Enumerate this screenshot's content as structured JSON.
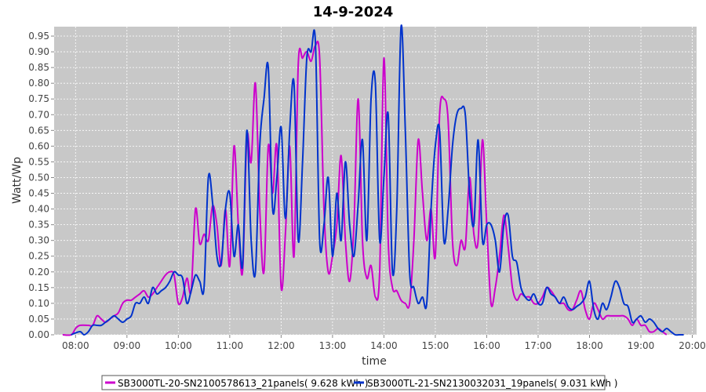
{
  "chart_data": {
    "type": "line",
    "title": "14-9-2024",
    "xlabel": "time",
    "ylabel": "Watt/Wp",
    "x_ticks": [
      "08:00",
      "09:00",
      "10:00",
      "11:00",
      "12:00",
      "13:00",
      "14:00",
      "15:00",
      "16:00",
      "17:00",
      "18:00",
      "19:00",
      "20:00"
    ],
    "x_range": [
      "07:35",
      "20:05"
    ],
    "ylim": [
      0,
      0.98
    ],
    "y_ticks": [
      "0.00",
      "0.05",
      "0.10",
      "0.15",
      "0.20",
      "0.25",
      "0.30",
      "0.35",
      "0.40",
      "0.45",
      "0.50",
      "0.55",
      "0.60",
      "0.65",
      "0.70",
      "0.75",
      "0.80",
      "0.85",
      "0.90",
      "0.95"
    ],
    "grid": true,
    "legend_position": "bottom",
    "series": [
      {
        "name": "SB3000TL-20-SN2100578613_21panels( 9.628 kWh )",
        "color": "#cc00cc",
        "points": [
          [
            "07:45",
            0.0
          ],
          [
            "07:55",
            0.0
          ],
          [
            "08:00",
            0.02
          ],
          [
            "08:05",
            0.03
          ],
          [
            "08:15",
            0.03
          ],
          [
            "08:20",
            0.03
          ],
          [
            "08:25",
            0.06
          ],
          [
            "08:30",
            0.05
          ],
          [
            "08:35",
            0.04
          ],
          [
            "08:40",
            0.05
          ],
          [
            "08:45",
            0.06
          ],
          [
            "08:50",
            0.07
          ],
          [
            "08:55",
            0.1
          ],
          [
            "09:00",
            0.11
          ],
          [
            "09:05",
            0.11
          ],
          [
            "09:10",
            0.12
          ],
          [
            "09:15",
            0.13
          ],
          [
            "09:20",
            0.14
          ],
          [
            "09:25",
            0.12
          ],
          [
            "09:30",
            0.13
          ],
          [
            "09:35",
            0.15
          ],
          [
            "09:40",
            0.17
          ],
          [
            "09:45",
            0.19
          ],
          [
            "09:50",
            0.2
          ],
          [
            "09:55",
            0.19
          ],
          [
            "10:00",
            0.1
          ],
          [
            "10:05",
            0.12
          ],
          [
            "10:10",
            0.18
          ],
          [
            "10:15",
            0.14
          ],
          [
            "10:20",
            0.4
          ],
          [
            "10:25",
            0.29
          ],
          [
            "10:30",
            0.32
          ],
          [
            "10:35",
            0.3
          ],
          [
            "10:40",
            0.41
          ],
          [
            "10:45",
            0.35
          ],
          [
            "10:50",
            0.22
          ],
          [
            "10:55",
            0.4
          ],
          [
            "11:00",
            0.22
          ],
          [
            "11:05",
            0.6
          ],
          [
            "11:10",
            0.35
          ],
          [
            "11:15",
            0.2
          ],
          [
            "11:20",
            0.63
          ],
          [
            "11:25",
            0.55
          ],
          [
            "11:30",
            0.8
          ],
          [
            "11:35",
            0.4
          ],
          [
            "11:40",
            0.2
          ],
          [
            "11:45",
            0.6
          ],
          [
            "11:50",
            0.45
          ],
          [
            "11:55",
            0.6
          ],
          [
            "12:00",
            0.15
          ],
          [
            "12:05",
            0.32
          ],
          [
            "12:10",
            0.6
          ],
          [
            "12:15",
            0.25
          ],
          [
            "12:20",
            0.86
          ],
          [
            "12:25",
            0.88
          ],
          [
            "12:30",
            0.9
          ],
          [
            "12:35",
            0.87
          ],
          [
            "12:40",
            0.92
          ],
          [
            "12:45",
            0.88
          ],
          [
            "12:50",
            0.4
          ],
          [
            "12:55",
            0.2
          ],
          [
            "13:00",
            0.25
          ],
          [
            "13:05",
            0.35
          ],
          [
            "13:10",
            0.57
          ],
          [
            "13:15",
            0.3
          ],
          [
            "13:20",
            0.17
          ],
          [
            "13:25",
            0.35
          ],
          [
            "13:30",
            0.75
          ],
          [
            "13:35",
            0.3
          ],
          [
            "13:40",
            0.18
          ],
          [
            "13:45",
            0.22
          ],
          [
            "13:50",
            0.12
          ],
          [
            "13:55",
            0.2
          ],
          [
            "14:00",
            0.88
          ],
          [
            "14:05",
            0.3
          ],
          [
            "14:10",
            0.15
          ],
          [
            "14:15",
            0.14
          ],
          [
            "14:20",
            0.11
          ],
          [
            "14:25",
            0.1
          ],
          [
            "14:30",
            0.1
          ],
          [
            "14:35",
            0.3
          ],
          [
            "14:40",
            0.62
          ],
          [
            "14:45",
            0.45
          ],
          [
            "14:50",
            0.3
          ],
          [
            "14:55",
            0.4
          ],
          [
            "15:00",
            0.25
          ],
          [
            "15:05",
            0.7
          ],
          [
            "15:10",
            0.75
          ],
          [
            "15:15",
            0.68
          ],
          [
            "15:20",
            0.3
          ],
          [
            "15:25",
            0.22
          ],
          [
            "15:30",
            0.3
          ],
          [
            "15:35",
            0.28
          ],
          [
            "15:40",
            0.5
          ],
          [
            "15:45",
            0.32
          ],
          [
            "15:50",
            0.3
          ],
          [
            "15:55",
            0.62
          ],
          [
            "16:00",
            0.35
          ],
          [
            "16:05",
            0.1
          ],
          [
            "16:10",
            0.15
          ],
          [
            "16:15",
            0.25
          ],
          [
            "16:20",
            0.38
          ],
          [
            "16:25",
            0.28
          ],
          [
            "16:30",
            0.15
          ],
          [
            "16:35",
            0.11
          ],
          [
            "16:40",
            0.13
          ],
          [
            "16:45",
            0.12
          ],
          [
            "16:50",
            0.12
          ],
          [
            "16:55",
            0.1
          ],
          [
            "17:00",
            0.1
          ],
          [
            "17:05",
            0.12
          ],
          [
            "17:10",
            0.15
          ],
          [
            "17:15",
            0.14
          ],
          [
            "17:20",
            0.12
          ],
          [
            "17:25",
            0.1
          ],
          [
            "17:30",
            0.1
          ],
          [
            "17:35",
            0.08
          ],
          [
            "17:40",
            0.08
          ],
          [
            "17:45",
            0.11
          ],
          [
            "17:50",
            0.14
          ],
          [
            "17:55",
            0.08
          ],
          [
            "18:00",
            0.05
          ],
          [
            "18:05",
            0.1
          ],
          [
            "18:10",
            0.08
          ],
          [
            "18:15",
            0.05
          ],
          [
            "18:20",
            0.06
          ],
          [
            "18:25",
            0.06
          ],
          [
            "18:30",
            0.06
          ],
          [
            "18:35",
            0.06
          ],
          [
            "18:40",
            0.06
          ],
          [
            "18:45",
            0.05
          ],
          [
            "18:50",
            0.03
          ],
          [
            "18:55",
            0.05
          ],
          [
            "19:00",
            0.03
          ],
          [
            "19:05",
            0.03
          ],
          [
            "19:10",
            0.01
          ],
          [
            "19:15",
            0.01
          ],
          [
            "19:20",
            0.02
          ],
          [
            "19:25",
            0.01
          ],
          [
            "19:30",
            0.0
          ]
        ]
      },
      {
        "name": "SB3000TL-21-SN2130032031_19panels( 9.031 kWh )",
        "color": "#0033cc",
        "points": [
          [
            "07:55",
            0.0
          ],
          [
            "08:05",
            0.01
          ],
          [
            "08:10",
            0.0
          ],
          [
            "08:15",
            0.01
          ],
          [
            "08:20",
            0.03
          ],
          [
            "08:25",
            0.03
          ],
          [
            "08:30",
            0.03
          ],
          [
            "08:35",
            0.04
          ],
          [
            "08:40",
            0.05
          ],
          [
            "08:45",
            0.06
          ],
          [
            "08:50",
            0.05
          ],
          [
            "08:55",
            0.04
          ],
          [
            "09:00",
            0.05
          ],
          [
            "09:05",
            0.06
          ],
          [
            "09:10",
            0.1
          ],
          [
            "09:15",
            0.1
          ],
          [
            "09:20",
            0.12
          ],
          [
            "09:25",
            0.1
          ],
          [
            "09:30",
            0.15
          ],
          [
            "09:35",
            0.13
          ],
          [
            "09:40",
            0.14
          ],
          [
            "09:45",
            0.15
          ],
          [
            "09:50",
            0.17
          ],
          [
            "09:55",
            0.2
          ],
          [
            "10:00",
            0.19
          ],
          [
            "10:05",
            0.18
          ],
          [
            "10:10",
            0.1
          ],
          [
            "10:15",
            0.14
          ],
          [
            "10:20",
            0.19
          ],
          [
            "10:25",
            0.17
          ],
          [
            "10:30",
            0.15
          ],
          [
            "10:35",
            0.5
          ],
          [
            "10:40",
            0.42
          ],
          [
            "10:45",
            0.25
          ],
          [
            "10:50",
            0.23
          ],
          [
            "10:55",
            0.4
          ],
          [
            "11:00",
            0.45
          ],
          [
            "11:05",
            0.25
          ],
          [
            "11:10",
            0.35
          ],
          [
            "11:15",
            0.22
          ],
          [
            "11:20",
            0.65
          ],
          [
            "11:25",
            0.3
          ],
          [
            "11:30",
            0.2
          ],
          [
            "11:35",
            0.6
          ],
          [
            "11:40",
            0.75
          ],
          [
            "11:45",
            0.85
          ],
          [
            "11:50",
            0.4
          ],
          [
            "11:55",
            0.5
          ],
          [
            "12:00",
            0.66
          ],
          [
            "12:05",
            0.37
          ],
          [
            "12:10",
            0.65
          ],
          [
            "12:15",
            0.8
          ],
          [
            "12:20",
            0.3
          ],
          [
            "12:25",
            0.55
          ],
          [
            "12:30",
            0.88
          ],
          [
            "12:35",
            0.9
          ],
          [
            "12:40",
            0.93
          ],
          [
            "12:45",
            0.3
          ],
          [
            "12:50",
            0.35
          ],
          [
            "12:55",
            0.5
          ],
          [
            "13:00",
            0.25
          ],
          [
            "13:05",
            0.45
          ],
          [
            "13:10",
            0.3
          ],
          [
            "13:15",
            0.55
          ],
          [
            "13:20",
            0.35
          ],
          [
            "13:25",
            0.25
          ],
          [
            "13:30",
            0.42
          ],
          [
            "13:35",
            0.62
          ],
          [
            "13:40",
            0.3
          ],
          [
            "13:45",
            0.75
          ],
          [
            "13:50",
            0.8
          ],
          [
            "13:55",
            0.3
          ],
          [
            "14:00",
            0.5
          ],
          [
            "14:05",
            0.7
          ],
          [
            "14:10",
            0.2
          ],
          [
            "14:15",
            0.4
          ],
          [
            "14:20",
            0.98
          ],
          [
            "14:25",
            0.65
          ],
          [
            "14:30",
            0.2
          ],
          [
            "14:35",
            0.15
          ],
          [
            "14:40",
            0.1
          ],
          [
            "14:45",
            0.12
          ],
          [
            "14:50",
            0.1
          ],
          [
            "14:55",
            0.4
          ],
          [
            "15:00",
            0.6
          ],
          [
            "15:05",
            0.65
          ],
          [
            "15:10",
            0.3
          ],
          [
            "15:15",
            0.4
          ],
          [
            "15:20",
            0.6
          ],
          [
            "15:25",
            0.7
          ],
          [
            "15:30",
            0.72
          ],
          [
            "15:35",
            0.7
          ],
          [
            "15:40",
            0.45
          ],
          [
            "15:45",
            0.35
          ],
          [
            "15:50",
            0.62
          ],
          [
            "15:55",
            0.3
          ],
          [
            "16:00",
            0.35
          ],
          [
            "16:05",
            0.35
          ],
          [
            "16:10",
            0.3
          ],
          [
            "16:15",
            0.2
          ],
          [
            "16:20",
            0.35
          ],
          [
            "16:25",
            0.38
          ],
          [
            "16:30",
            0.25
          ],
          [
            "16:35",
            0.23
          ],
          [
            "16:40",
            0.15
          ],
          [
            "16:45",
            0.12
          ],
          [
            "16:50",
            0.11
          ],
          [
            "16:55",
            0.13
          ],
          [
            "17:00",
            0.1
          ],
          [
            "17:05",
            0.1
          ],
          [
            "17:10",
            0.15
          ],
          [
            "17:15",
            0.13
          ],
          [
            "17:20",
            0.12
          ],
          [
            "17:25",
            0.1
          ],
          [
            "17:30",
            0.12
          ],
          [
            "17:35",
            0.09
          ],
          [
            "17:40",
            0.08
          ],
          [
            "17:45",
            0.09
          ],
          [
            "17:50",
            0.1
          ],
          [
            "17:55",
            0.12
          ],
          [
            "18:00",
            0.17
          ],
          [
            "18:05",
            0.08
          ],
          [
            "18:10",
            0.05
          ],
          [
            "18:15",
            0.1
          ],
          [
            "18:20",
            0.08
          ],
          [
            "18:25",
            0.12
          ],
          [
            "18:30",
            0.17
          ],
          [
            "18:35",
            0.15
          ],
          [
            "18:40",
            0.1
          ],
          [
            "18:45",
            0.09
          ],
          [
            "18:50",
            0.04
          ],
          [
            "18:55",
            0.05
          ],
          [
            "19:00",
            0.06
          ],
          [
            "19:05",
            0.04
          ],
          [
            "19:10",
            0.05
          ],
          [
            "19:15",
            0.04
          ],
          [
            "19:20",
            0.02
          ],
          [
            "19:25",
            0.01
          ],
          [
            "19:30",
            0.02
          ],
          [
            "19:35",
            0.01
          ],
          [
            "19:40",
            0.0
          ],
          [
            "19:45",
            0.0
          ],
          [
            "19:50",
            0.0
          ]
        ]
      }
    ]
  }
}
